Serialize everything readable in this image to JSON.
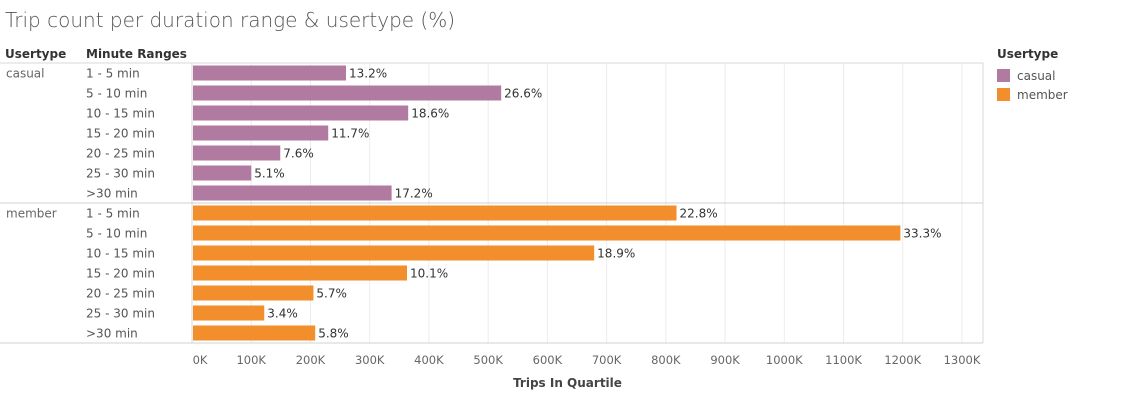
{
  "title": "Trip count per duration range & usertype (%)",
  "headers": {
    "usertype": "Usertype",
    "minute_ranges": "Minute Ranges"
  },
  "legend": {
    "title": "Usertype",
    "items": [
      {
        "label": "casual",
        "color": "#b07aa1"
      },
      {
        "label": "member",
        "color": "#f28e2b"
      }
    ]
  },
  "chart_data": {
    "type": "bar",
    "orientation": "horizontal",
    "title": "Trip count per duration range & usertype (%)",
    "xlabel": "Trips In Quartile",
    "xlim": [
      0,
      1300000
    ],
    "xticks": [
      0,
      100000,
      200000,
      300000,
      400000,
      500000,
      600000,
      700000,
      800000,
      900000,
      1000000,
      1100000,
      1200000,
      1300000
    ],
    "xtick_labels": [
      "0K",
      "100K",
      "200K",
      "300K",
      "400K",
      "500K",
      "600K",
      "700K",
      "800K",
      "900K",
      "1000K",
      "1100K",
      "1200K",
      "1300K"
    ],
    "grid": true,
    "legend_position": "right",
    "categories": [
      "1 - 5 min",
      "5 - 10 min",
      "10 - 15 min",
      "15 - 20 min",
      "20 - 25 min",
      "25 - 30 min",
      ">30 min"
    ],
    "series": [
      {
        "name": "casual",
        "color": "#b07aa1",
        "values": [
          260000,
          522000,
          365000,
          230000,
          149000,
          100000,
          337000
        ],
        "labels": [
          "13.2%",
          "26.6%",
          "18.6%",
          "11.7%",
          "7.6%",
          "5.1%",
          "17.2%"
        ]
      },
      {
        "name": "member",
        "color": "#f28e2b",
        "values": [
          818000,
          1196000,
          679000,
          363000,
          205000,
          122000,
          208000
        ],
        "labels": [
          "22.8%",
          "33.3%",
          "18.9%",
          "10.1%",
          "5.7%",
          "3.4%",
          "5.8%"
        ]
      }
    ]
  }
}
